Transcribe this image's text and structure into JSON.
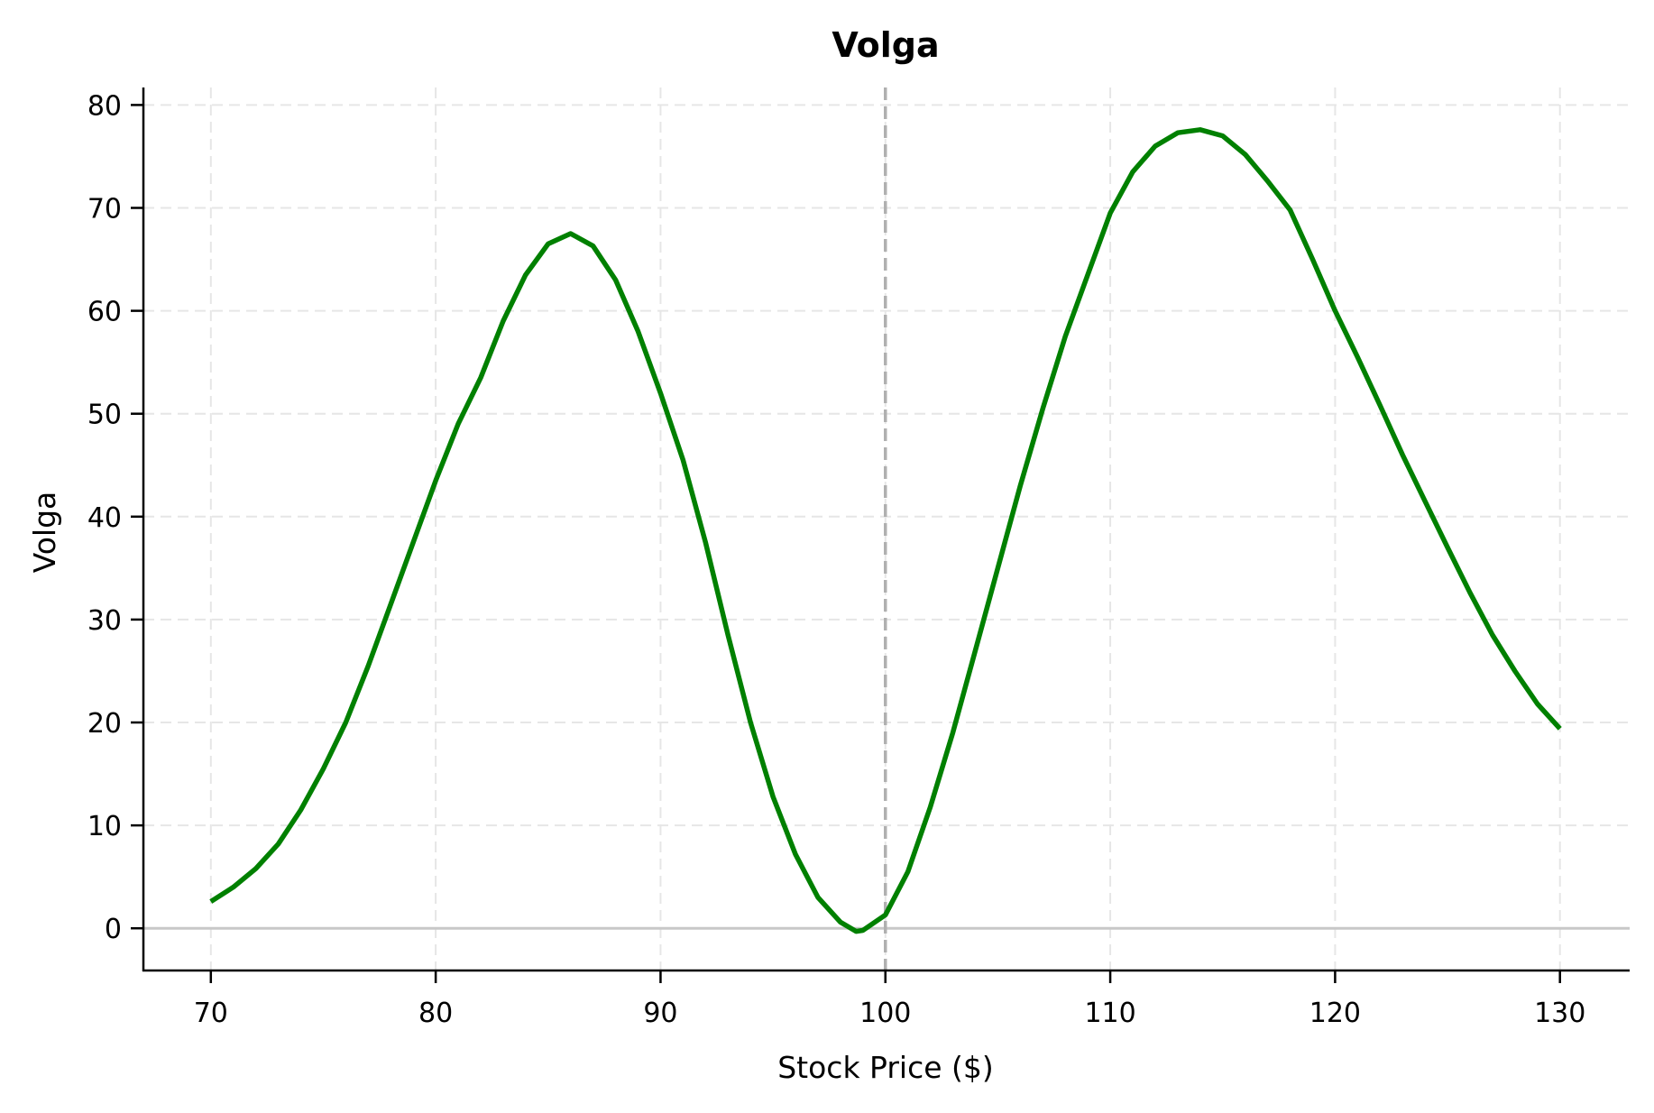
{
  "chart_data": {
    "type": "line",
    "title": "Volga",
    "xlabel": "Stock Price ($)",
    "ylabel": "Volga",
    "xlim": [
      67,
      133.1
    ],
    "ylim": [
      -4.1,
      81.7
    ],
    "xticks": [
      70,
      80,
      90,
      100,
      110,
      120,
      130
    ],
    "yticks": [
      0,
      10,
      20,
      30,
      40,
      50,
      60,
      70,
      80
    ],
    "grid": true,
    "legend": null,
    "reference_lines": {
      "vertical": {
        "x": 100,
        "color": "#b0b0b0",
        "style": "dashed"
      },
      "horizontal": {
        "y": 0,
        "color": "#c8c8c8",
        "style": "solid"
      }
    },
    "series": [
      {
        "name": "Volga",
        "color": "#008000",
        "x": [
          70,
          71,
          72,
          73,
          74,
          75,
          76,
          77,
          78,
          79,
          80,
          81,
          82,
          83,
          84,
          85,
          86,
          87,
          88,
          89,
          90,
          91,
          92,
          93,
          94,
          95,
          96,
          97,
          98,
          98.7,
          99,
          100,
          101,
          102,
          103,
          104,
          105,
          106,
          107,
          108,
          109,
          110,
          111,
          112,
          113,
          114,
          115,
          116,
          117,
          118,
          119,
          120,
          121,
          122,
          123,
          124,
          125,
          126,
          127,
          128,
          129,
          130
        ],
        "values": [
          2.6,
          4.0,
          5.8,
          8.2,
          11.5,
          15.5,
          20.0,
          25.5,
          31.5,
          37.5,
          43.5,
          49.0,
          53.5,
          59.0,
          63.5,
          66.5,
          67.5,
          66.3,
          63.0,
          58.0,
          52.0,
          45.5,
          37.5,
          28.5,
          20.0,
          12.8,
          7.2,
          3.0,
          0.6,
          -0.3,
          -0.2,
          1.3,
          5.5,
          11.8,
          19.0,
          27.0,
          35.0,
          43.0,
          50.5,
          57.5,
          63.5,
          69.5,
          73.5,
          76.0,
          77.3,
          77.6,
          77.0,
          75.2,
          72.6,
          69.8,
          65.0,
          60.0,
          55.5,
          50.8,
          46.0,
          41.5,
          37.0,
          32.6,
          28.5,
          25.0,
          21.8,
          19.4
        ]
      }
    ]
  }
}
